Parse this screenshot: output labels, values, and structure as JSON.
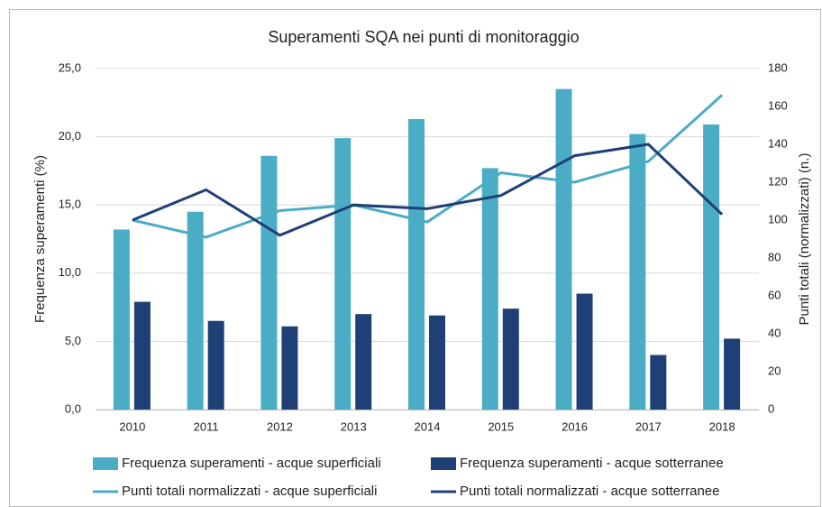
{
  "chart_data": {
    "type": "bar",
    "title": "Superamenti SQA nei punti di monitoraggio",
    "ylabel": "Frequenza superamenti (%)",
    "y2label": "Punti totali (normalizzati) (n.)",
    "categories": [
      "2010",
      "2011",
      "2012",
      "2013",
      "2014",
      "2015",
      "2016",
      "2017",
      "2018"
    ],
    "series": [
      {
        "name": "Frequenza superamenti - acque superficiali",
        "type": "bar",
        "color": "#4bacc6",
        "values": [
          13.2,
          14.5,
          18.6,
          19.9,
          21.3,
          17.7,
          23.5,
          20.2,
          20.9
        ]
      },
      {
        "name": "Frequenza superamenti - acque sotterranee",
        "type": "bar",
        "color": "#1f3f77",
        "values": [
          7.9,
          6.5,
          6.1,
          7.0,
          6.9,
          7.4,
          8.5,
          4.0,
          5.2
        ]
      },
      {
        "name": "Punti totali normalizzati - acque superficiali",
        "type": "line",
        "axis": "y2",
        "color": "#4bacc6",
        "values": [
          100,
          91,
          105,
          108,
          99,
          125,
          120,
          131,
          166
        ]
      },
      {
        "name": "Punti totali normalizzati - acque sotterranee",
        "type": "line",
        "axis": "y2",
        "color": "#1f3f77",
        "values": [
          100,
          116,
          92,
          108,
          106,
          113,
          134,
          140,
          103
        ]
      }
    ],
    "ylim": [
      0,
      25
    ],
    "yticks": [
      {
        "value": 0,
        "label": "0,0"
      },
      {
        "value": 5,
        "label": "5,0"
      },
      {
        "value": 10,
        "label": "10,0"
      },
      {
        "value": 15,
        "label": "15,0"
      },
      {
        "value": 20,
        "label": "20,0"
      },
      {
        "value": 25,
        "label": "25,0"
      }
    ],
    "y2lim": [
      0,
      180
    ],
    "y2ticks": [
      0,
      20,
      40,
      60,
      80,
      100,
      120,
      140,
      160,
      180
    ],
    "grid": true,
    "legend": "bottom"
  }
}
